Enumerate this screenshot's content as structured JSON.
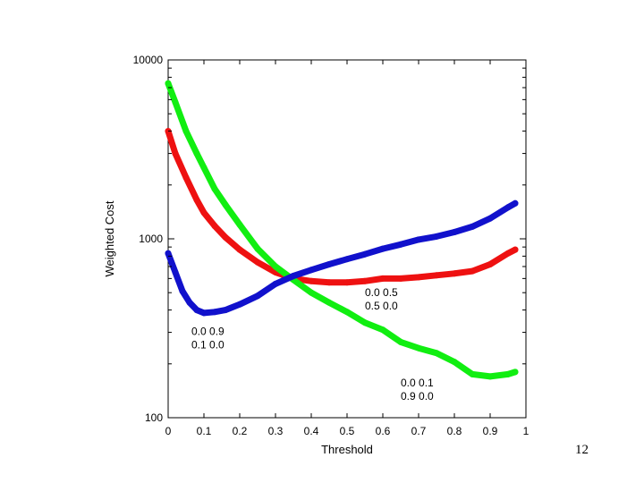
{
  "page_number": "12",
  "colors": {
    "red": "#ee1111",
    "green": "#11ee11",
    "blue": "#1111cc",
    "axis": "#000000"
  },
  "chart_data": {
    "type": "line",
    "xlabel": "Threshold",
    "ylabel": "Weighted Cost",
    "xlim": [
      0,
      1
    ],
    "ylim": [
      100,
      10000
    ],
    "yscale": "log",
    "grid": false,
    "x_ticks": [
      "0",
      "0.1",
      "0.2",
      "0.3",
      "0.4",
      "0.5",
      "0.6",
      "0.7",
      "0.8",
      "0.9",
      "1"
    ],
    "y_ticks": [
      {
        "value": 100,
        "label": "100"
      },
      {
        "value": 1000,
        "label": "1000"
      },
      {
        "value": 10000,
        "label": "10000"
      }
    ],
    "series": [
      {
        "color": "#ee1111",
        "points": [
          [
            0.0,
            4000
          ],
          [
            0.02,
            3000
          ],
          [
            0.05,
            2200
          ],
          [
            0.08,
            1650
          ],
          [
            0.1,
            1400
          ],
          [
            0.13,
            1180
          ],
          [
            0.16,
            1020
          ],
          [
            0.2,
            870
          ],
          [
            0.25,
            740
          ],
          [
            0.3,
            650
          ],
          [
            0.35,
            600
          ],
          [
            0.4,
            580
          ],
          [
            0.45,
            570
          ],
          [
            0.5,
            570
          ],
          [
            0.55,
            580
          ],
          [
            0.6,
            600
          ],
          [
            0.65,
            600
          ],
          [
            0.7,
            610
          ],
          [
            0.75,
            625
          ],
          [
            0.8,
            640
          ],
          [
            0.85,
            660
          ],
          [
            0.9,
            720
          ],
          [
            0.95,
            830
          ],
          [
            0.97,
            870
          ]
        ]
      },
      {
        "color": "#11ee11",
        "points": [
          [
            0.0,
            7400
          ],
          [
            0.02,
            5800
          ],
          [
            0.05,
            4000
          ],
          [
            0.08,
            3000
          ],
          [
            0.1,
            2500
          ],
          [
            0.13,
            1900
          ],
          [
            0.16,
            1550
          ],
          [
            0.2,
            1200
          ],
          [
            0.25,
            880
          ],
          [
            0.3,
            700
          ],
          [
            0.35,
            590
          ],
          [
            0.4,
            500
          ],
          [
            0.45,
            440
          ],
          [
            0.5,
            390
          ],
          [
            0.55,
            340
          ],
          [
            0.6,
            310
          ],
          [
            0.65,
            265
          ],
          [
            0.7,
            245
          ],
          [
            0.75,
            230
          ],
          [
            0.8,
            205
          ],
          [
            0.85,
            175
          ],
          [
            0.9,
            170
          ],
          [
            0.95,
            175
          ],
          [
            0.97,
            180
          ]
        ]
      },
      {
        "color": "#1111cc",
        "points": [
          [
            0.0,
            830
          ],
          [
            0.02,
            650
          ],
          [
            0.04,
            510
          ],
          [
            0.06,
            440
          ],
          [
            0.08,
            400
          ],
          [
            0.1,
            385
          ],
          [
            0.13,
            390
          ],
          [
            0.16,
            400
          ],
          [
            0.2,
            430
          ],
          [
            0.25,
            480
          ],
          [
            0.3,
            560
          ],
          [
            0.35,
            620
          ],
          [
            0.4,
            670
          ],
          [
            0.45,
            720
          ],
          [
            0.5,
            770
          ],
          [
            0.55,
            820
          ],
          [
            0.6,
            880
          ],
          [
            0.65,
            930
          ],
          [
            0.7,
            990
          ],
          [
            0.75,
            1030
          ],
          [
            0.8,
            1090
          ],
          [
            0.85,
            1170
          ],
          [
            0.9,
            1300
          ],
          [
            0.95,
            1500
          ],
          [
            0.97,
            1580
          ]
        ]
      }
    ],
    "annotations": [
      {
        "lines": [
          "0.0 0.9",
          "0.1 0.0"
        ],
        "x": 0.065,
        "y": 290
      },
      {
        "lines": [
          "0.0 0.5",
          "0.5 0.0"
        ],
        "x": 0.55,
        "y": 480
      },
      {
        "lines": [
          "0.0 0.1",
          "0.9 0.0"
        ],
        "x": 0.65,
        "y": 150
      }
    ]
  }
}
